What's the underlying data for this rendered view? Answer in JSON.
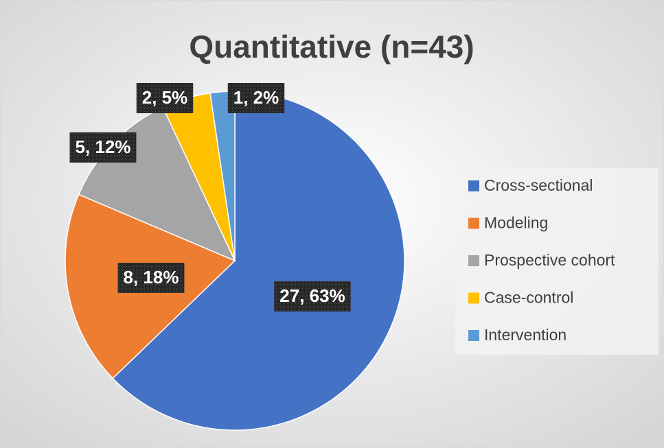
{
  "chart_data": {
    "type": "pie",
    "title": "Quantitative (n=43)",
    "categories": [
      "Cross-sectional",
      "Modeling",
      "Prospective cohort",
      "Case-control",
      "Intervention"
    ],
    "values": [
      27,
      8,
      5,
      2,
      1
    ],
    "value_labels": [
      "27, 63%",
      "8, 18%",
      "5, 12%",
      "2, 5%",
      "1, 2%"
    ],
    "colors": [
      "#4472c4",
      "#ed7d31",
      "#a5a5a5",
      "#ffc000",
      "#5b9bd5"
    ],
    "legend": "right"
  }
}
